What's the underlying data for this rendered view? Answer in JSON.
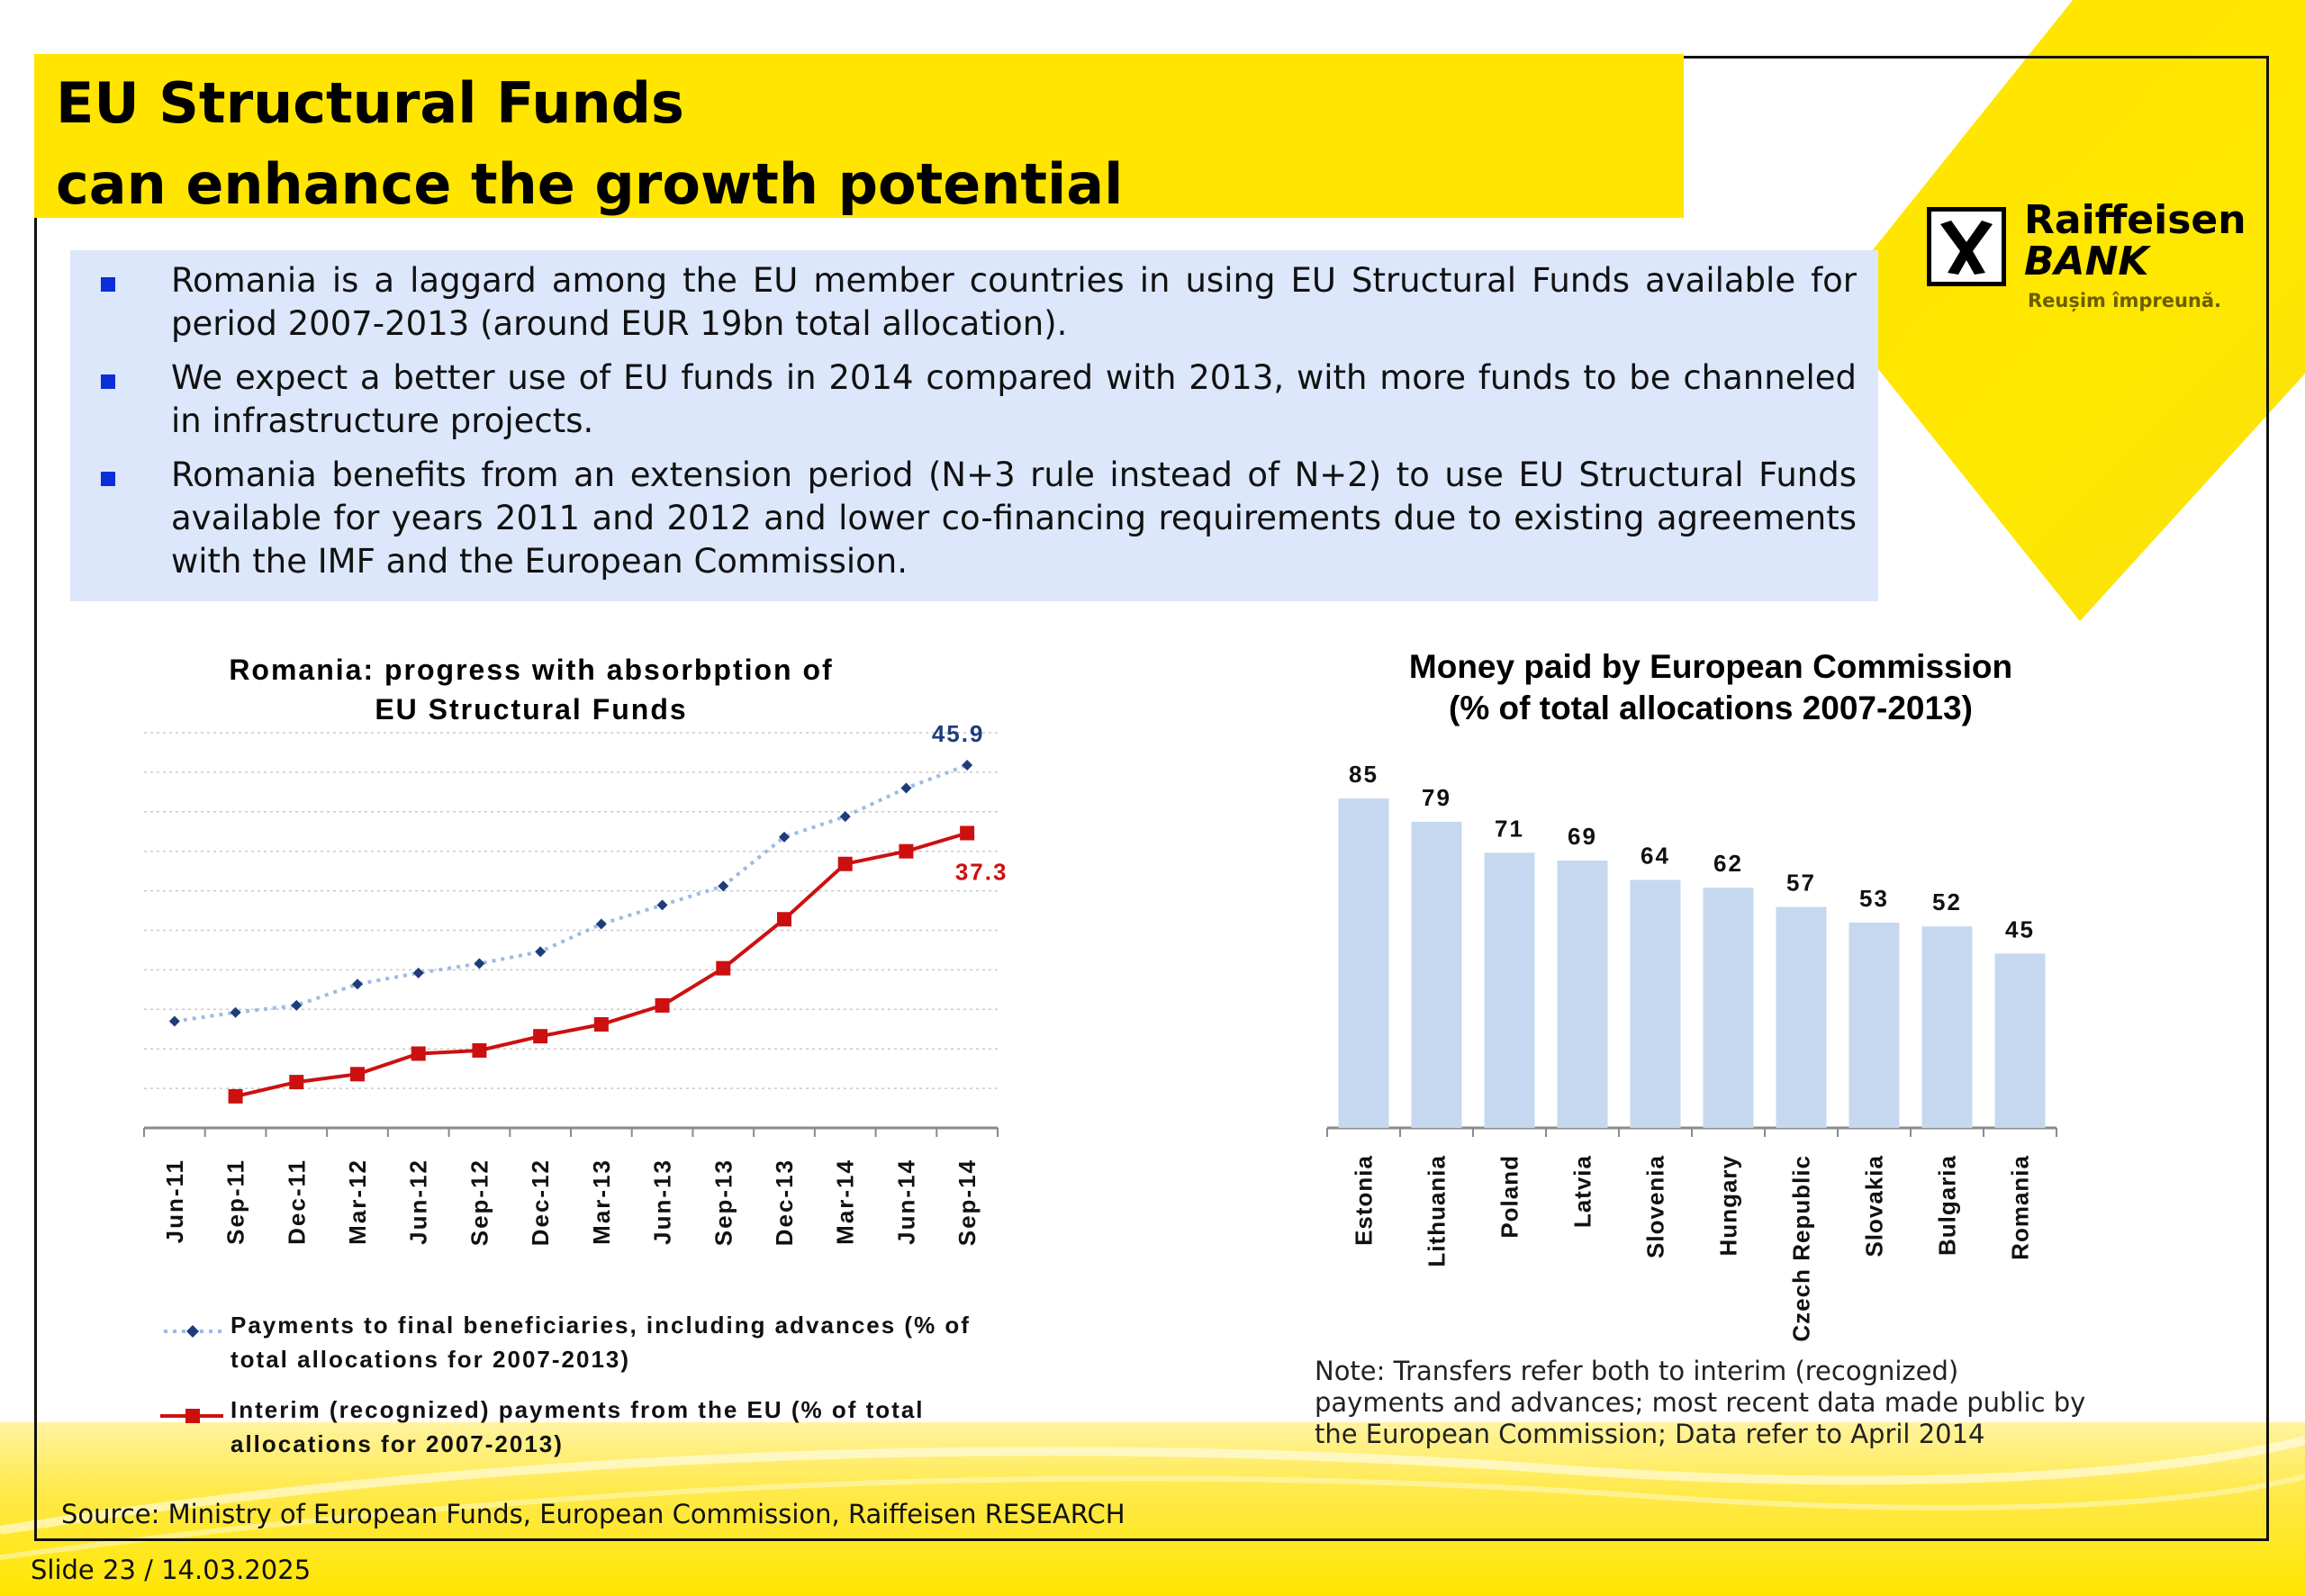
{
  "title_lines": [
    "EU Structural Funds",
    "can enhance the growth potential"
  ],
  "logo": {
    "name": "Raiffeisen",
    "sub": "BANK",
    "tagline": "Reușim împreună."
  },
  "bullets": [
    "Romania is a laggard among the EU member countries in using EU Structural Funds available for period 2007-2013 (around EUR 19bn total allocation).",
    "We expect a better use of EU funds in 2014 compared with 2013, with more funds to be channeled in infrastructure projects.",
    "Romania benefits from an extension period (N+3 rule instead of N+2) to use EU Structural Funds available for years 2011 and 2012 and lower co-financing requirements due to existing agreements with the IMF and  the European Commission."
  ],
  "chart_data": [
    {
      "type": "line",
      "title_lines": [
        "Romania: progress with absorbption of",
        "EU Structural Funds"
      ],
      "categories": [
        "Jun-11",
        "Sep-11",
        "Dec-11",
        "Mar-12",
        "Jun-12",
        "Sep-12",
        "Dec-12",
        "Mar-13",
        "Jun-13",
        "Sep-13",
        "Dec-13",
        "Mar-14",
        "Jun-14",
        "Sep-14"
      ],
      "ylim": [
        0,
        50
      ],
      "grid": true,
      "series": [
        {
          "name": "Payments to final beneficiaries, including advances (% of total allocations for 2007-2013)",
          "legend_lines": [
            "Payments to final beneficiaries, including advances (% of",
            "total allocations for 2007-2013)"
          ],
          "color": "#9dbbe6",
          "marker_color": "#1f3c7a",
          "style": "dotted-diamond",
          "values": [
            13.5,
            14.6,
            15.5,
            18.2,
            19.6,
            20.8,
            22.3,
            25.8,
            28.2,
            30.6,
            36.8,
            39.4,
            43.0,
            45.9
          ],
          "end_label": "45.9"
        },
        {
          "name": "Interim (recognized) payments from the EU (% of total allocations for 2007-2013)",
          "legend_lines": [
            "Interim (recognized) payments from the EU (% of total",
            "allocations for 2007-2013)"
          ],
          "color": "#cc1010",
          "style": "solid-square",
          "values": [
            null,
            4.0,
            5.8,
            6.8,
            9.4,
            9.8,
            11.6,
            13.1,
            15.5,
            20.2,
            26.4,
            33.4,
            35.0,
            37.3
          ],
          "end_label": "37.3"
        }
      ]
    },
    {
      "type": "bar",
      "title_lines": [
        "Money paid by European Commission",
        "(% of total allocations 2007-2013)"
      ],
      "categories": [
        "Estonia",
        "Lithuania",
        "Poland",
        "Latvia",
        "Slovenia",
        "Hungary",
        "Czech Republic",
        "Slovakia",
        "Bulgaria",
        "Romania"
      ],
      "values": [
        85,
        79,
        71,
        69,
        64,
        62,
        57,
        53,
        52,
        45
      ],
      "ylim": [
        0,
        100
      ],
      "bar_color": "#c5d8ef"
    }
  ],
  "note": "Note:  Transfers refer both to interim (recognized) payments and advances; most recent data made public by the European Commission; Data refer to April 2014",
  "source": "Source: Ministry of European Funds, European Commission, Raiffeisen RESEARCH",
  "slide_footer": "Slide 23 / 14.03.2025"
}
